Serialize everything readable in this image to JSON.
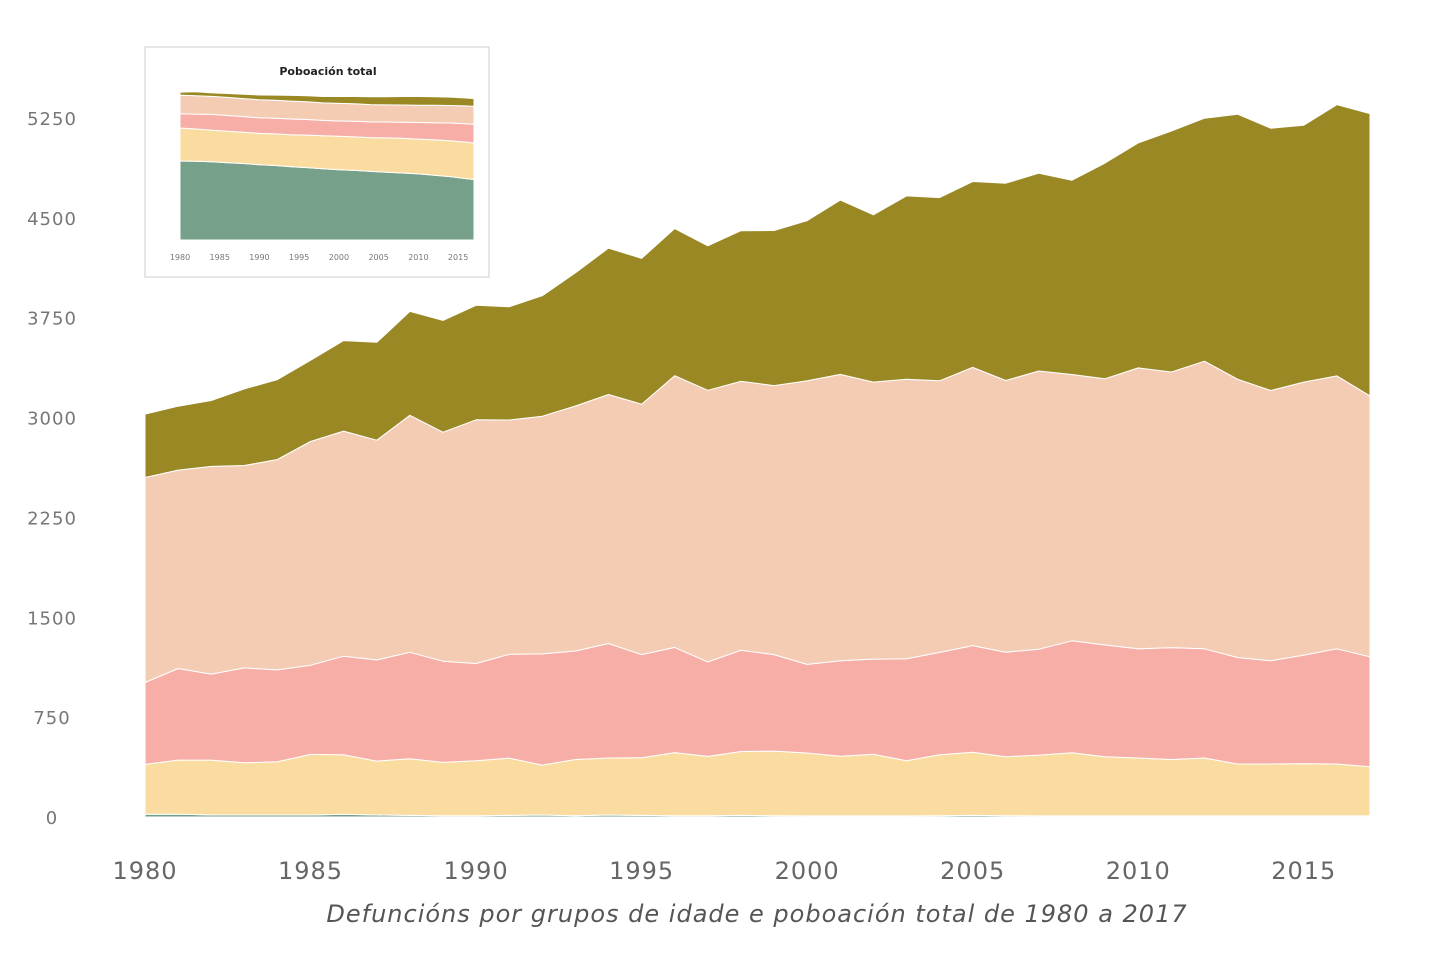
{
  "caption": "Defuncións por grupos de idade e poboación total de 1980 a 2017",
  "colors": {
    "band_0": "#76a08a",
    "band_1": "#fbdca0",
    "band_2": "#f6aea6",
    "band_3": "#f4ccb4",
    "band_4": "#9a8825"
  },
  "chart_data": [
    {
      "type": "area",
      "stacked": true,
      "title": "",
      "xlabel": "",
      "ylabel": "",
      "ylim": [
        0,
        5400
      ],
      "xlim": [
        1980,
        2017
      ],
      "y_ticks": [
        0,
        750,
        1500,
        2250,
        3000,
        3750,
        4500,
        5250
      ],
      "x_ticks": [
        1980,
        1985,
        1990,
        1995,
        2000,
        2005,
        2010,
        2015
      ],
      "grid": false,
      "legend": "none",
      "x": [
        1980,
        1981,
        1982,
        1983,
        1984,
        1985,
        1986,
        1987,
        1988,
        1989,
        1990,
        1991,
        1992,
        1993,
        1994,
        1995,
        1996,
        1997,
        1998,
        1999,
        2000,
        2001,
        2002,
        2003,
        2004,
        2005,
        2006,
        2007,
        2008,
        2009,
        2010,
        2011,
        2012,
        2013,
        2014,
        2015,
        2016,
        2017
      ],
      "series": [
        {
          "values": [
            20,
            22,
            15,
            15,
            15,
            15,
            20,
            15,
            12,
            10,
            10,
            12,
            15,
            10,
            15,
            12,
            10,
            10,
            12,
            10,
            8,
            8,
            8,
            8,
            10,
            12,
            10,
            8,
            8,
            8,
            8,
            8,
            8,
            8,
            8,
            8,
            8,
            8
          ]
        },
        {
          "values": [
            375,
            405,
            412,
            392,
            400,
            455,
            448,
            405,
            425,
            400,
            413,
            430,
            375,
            422,
            428,
            433,
            474,
            445,
            480,
            485,
            473,
            448,
            463,
            415,
            458,
            475,
            443,
            457,
            475,
            444,
            435,
            424,
            435,
            390,
            390,
            393,
            390,
            370
          ]
        },
        {
          "values": [
            615,
            688,
            646,
            713,
            690,
            670,
            740,
            760,
            800,
            760,
            730,
            780,
            835,
            815,
            860,
            775,
            790,
            710,
            760,
            725,
            665,
            718,
            715,
            765,
            768,
            800,
            785,
            795,
            840,
            840,
            820,
            840,
            820,
            800,
            775,
            815,
            865,
            825
          ]
        },
        {
          "values": [
            1540,
            1490,
            1560,
            1520,
            1580,
            1680,
            1690,
            1650,
            1780,
            1720,
            1830,
            1760,
            1785,
            1840,
            1870,
            1880,
            2040,
            2040,
            2020,
            2020,
            2130,
            2150,
            2080,
            2100,
            2040,
            2090,
            2040,
            2090,
            2000,
            2000,
            2110,
            2070,
            2160,
            2090,
            2030,
            2050,
            2050,
            1960
          ]
        },
        {
          "values": [
            475,
            480,
            495,
            575,
            600,
            610,
            680,
            735,
            780,
            840,
            860,
            850,
            905,
            1000,
            1100,
            1095,
            1106,
            1085,
            1131,
            1165,
            1203,
            1309,
            1257,
            1377,
            1376,
            1396,
            1482,
            1485,
            1460,
            1620,
            1690,
            1810,
            1825,
            1990,
            1970,
            1930,
            2037,
            2120
          ]
        }
      ]
    },
    {
      "type": "area",
      "stacked": true,
      "title": "Poboación total",
      "xlabel": "",
      "ylabel": "",
      "ylim": [
        0,
        100
      ],
      "x_ticks": [
        1980,
        1985,
        1990,
        1995,
        2000,
        2005,
        2010,
        2015
      ],
      "legend": "none",
      "x": [
        1980,
        1982,
        1984,
        1986,
        1988,
        1990,
        1992,
        1994,
        1996,
        1998,
        2000,
        2002,
        2004,
        2006,
        2008,
        2010,
        2012,
        2014,
        2016,
        2017
      ],
      "series": [
        {
          "values": [
            52.0,
            51.8,
            51.5,
            50.8,
            50.3,
            49.5,
            49.0,
            48.2,
            47.6,
            46.9,
            46.2,
            45.8,
            45.1,
            44.6,
            44.1,
            43.5,
            42.6,
            41.7,
            40.4,
            39.8
          ]
        },
        {
          "values": [
            21.7,
            21.2,
            20.8,
            20.8,
            20.6,
            20.6,
            20.8,
            21.1,
            21.4,
            21.7,
            22.0,
            22.0,
            22.3,
            22.6,
            22.9,
            22.9,
            23.3,
            23.6,
            24.0,
            24.0
          ]
        },
        {
          "values": [
            9.3,
            9.8,
            10.3,
            10.3,
            10.3,
            10.3,
            10.3,
            10.3,
            10.3,
            10.1,
            10.1,
            10.3,
            10.3,
            10.4,
            10.5,
            10.9,
            11.3,
            11.7,
            12.1,
            12.3
          ]
        },
        {
          "values": [
            12.3,
            12.1,
            11.9,
            11.9,
            11.8,
            11.9,
            11.8,
            11.8,
            11.7,
            11.5,
            11.6,
            11.5,
            11.4,
            11.3,
            11.3,
            11.3,
            11.4,
            11.5,
            11.7,
            11.8
          ]
        },
        {
          "values": [
            2.0,
            2.6,
            2.3,
            2.6,
            2.9,
            3.1,
            3.4,
            3.7,
            3.9,
            4.2,
            4.5,
            4.8,
            5.1,
            5.4,
            5.6,
            5.8,
            5.7,
            5.5,
            5.2,
            5.1
          ]
        }
      ]
    }
  ]
}
